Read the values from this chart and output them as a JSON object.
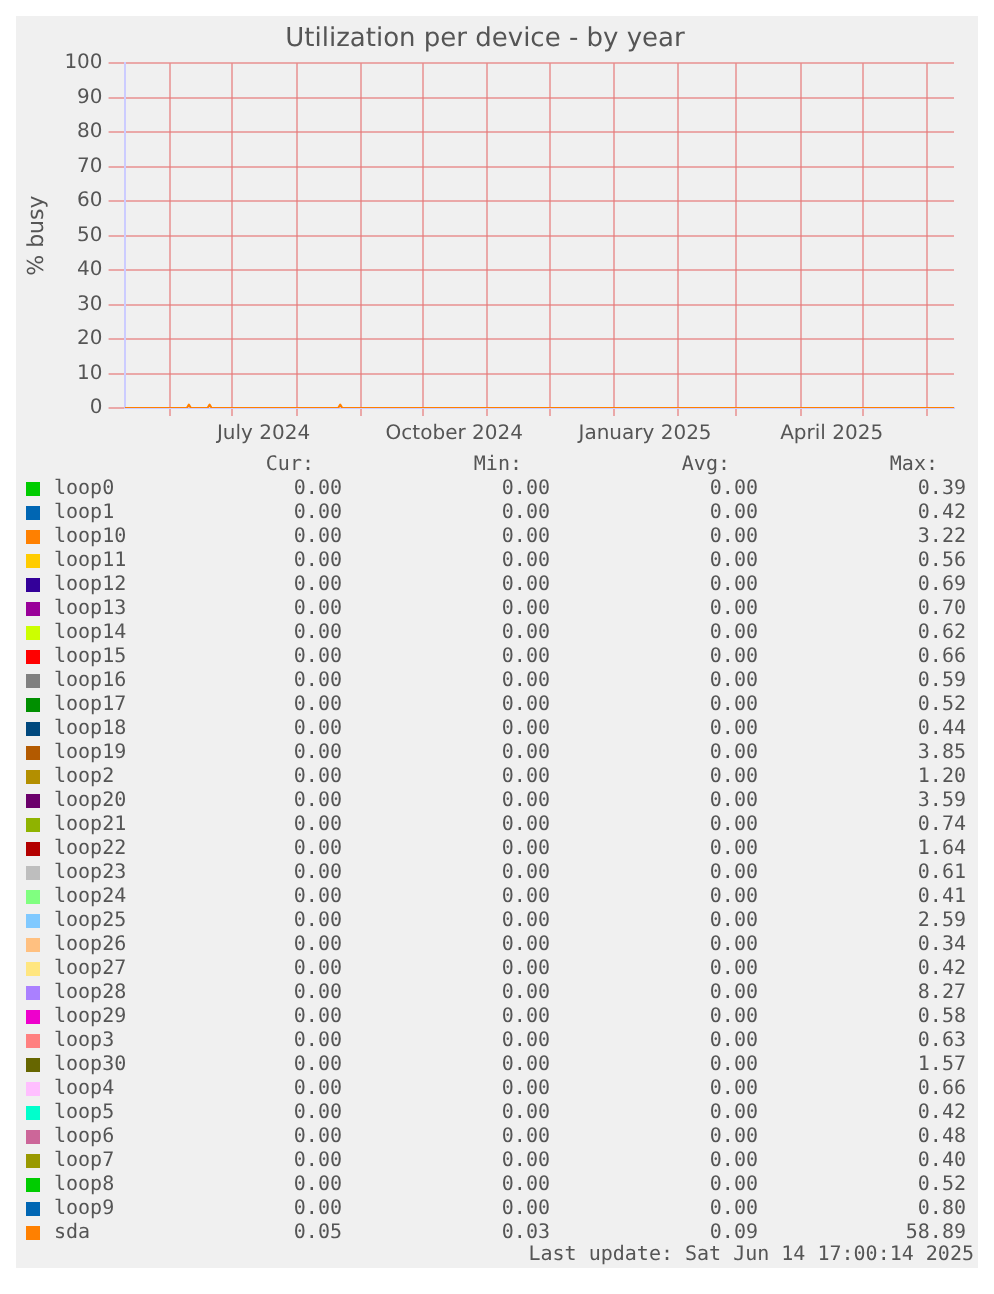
{
  "chart_data": {
    "type": "line",
    "title": "Utilization per device - by year",
    "ylabel": "% busy",
    "x": [
      "2024-05-10",
      "2024-06-09",
      "2024-06-10",
      "2024-06-11",
      "2024-06-19",
      "2024-06-20",
      "2024-06-21",
      "2024-08-21",
      "2024-08-22",
      "2024-08-23",
      "2024-10-01",
      "2025-01-01",
      "2025-04-01",
      "2025-06-14"
    ],
    "xlim": [
      "2024-05-10",
      "2025-06-14"
    ],
    "xticks": [
      {
        "value": "2024-06-01",
        "label": null
      },
      {
        "value": "2024-07-01",
        "label": null
      },
      {
        "value": "2024-07-16",
        "label": "July 2024"
      },
      {
        "value": "2024-08-01",
        "label": null
      },
      {
        "value": "2024-09-01",
        "label": null
      },
      {
        "value": "2024-10-01",
        "label": null
      },
      {
        "value": "2024-10-16",
        "label": "October 2024"
      },
      {
        "value": "2024-11-01",
        "label": null
      },
      {
        "value": "2024-12-01",
        "label": null
      },
      {
        "value": "2025-01-01",
        "label": null
      },
      {
        "value": "2025-01-16",
        "label": "January 2025"
      },
      {
        "value": "2025-02-01",
        "label": null
      },
      {
        "value": "2025-03-01",
        "label": null
      },
      {
        "value": "2025-04-01",
        "label": null
      },
      {
        "value": "2025-04-16",
        "label": "April 2025"
      },
      {
        "value": "2025-05-01",
        "label": null
      },
      {
        "value": "2025-06-01",
        "label": null
      }
    ],
    "ylim": [
      0,
      100
    ],
    "yticks": [
      0,
      10,
      20,
      30,
      40,
      50,
      60,
      70,
      80,
      90,
      100
    ],
    "grid": true,
    "legend": "bottom",
    "marker": "none",
    "line_style": "solid",
    "series": [
      {
        "name": "loop0",
        "color": "#00cc00",
        "values": [
          null,
          null,
          null,
          null,
          null,
          null,
          null,
          null,
          null,
          null,
          null,
          null,
          null,
          null
        ]
      },
      {
        "name": "loop1",
        "color": "#0066b3",
        "values": [
          null,
          null,
          null,
          null,
          null,
          null,
          null,
          null,
          null,
          null,
          null,
          null,
          null,
          null
        ]
      },
      {
        "name": "loop10",
        "color": "#ff8000",
        "values": [
          null,
          null,
          null,
          null,
          null,
          null,
          null,
          null,
          null,
          null,
          null,
          null,
          null,
          null
        ]
      },
      {
        "name": "loop11",
        "color": "#ffcc00",
        "values": [
          null,
          null,
          null,
          null,
          null,
          null,
          null,
          null,
          null,
          null,
          null,
          null,
          null,
          null
        ]
      },
      {
        "name": "loop12",
        "color": "#330099",
        "values": [
          null,
          null,
          null,
          null,
          null,
          null,
          null,
          null,
          null,
          null,
          null,
          null,
          null,
          null
        ]
      },
      {
        "name": "loop13",
        "color": "#990099",
        "values": [
          null,
          null,
          null,
          null,
          null,
          null,
          null,
          null,
          null,
          null,
          null,
          null,
          null,
          null
        ]
      },
      {
        "name": "loop14",
        "color": "#ccff00",
        "values": [
          null,
          null,
          null,
          null,
          null,
          null,
          null,
          null,
          null,
          null,
          null,
          null,
          null,
          null
        ]
      },
      {
        "name": "loop15",
        "color": "#ff0000",
        "values": [
          null,
          null,
          null,
          null,
          null,
          null,
          null,
          null,
          null,
          null,
          null,
          null,
          null,
          null
        ]
      },
      {
        "name": "loop16",
        "color": "#808080",
        "values": [
          null,
          null,
          null,
          null,
          null,
          null,
          null,
          null,
          null,
          null,
          null,
          null,
          null,
          null
        ]
      },
      {
        "name": "loop17",
        "color": "#008f00",
        "values": [
          null,
          null,
          null,
          null,
          null,
          null,
          null,
          null,
          null,
          null,
          null,
          null,
          null,
          null
        ]
      },
      {
        "name": "loop18",
        "color": "#00487d",
        "values": [
          null,
          null,
          null,
          null,
          null,
          null,
          null,
          null,
          null,
          null,
          null,
          null,
          null,
          null
        ]
      },
      {
        "name": "loop19",
        "color": "#b35a00",
        "values": [
          null,
          null,
          null,
          null,
          null,
          null,
          null,
          null,
          null,
          null,
          null,
          null,
          null,
          null
        ]
      },
      {
        "name": "loop2",
        "color": "#b38f00",
        "values": [
          null,
          null,
          null,
          null,
          null,
          null,
          null,
          null,
          null,
          null,
          null,
          null,
          null,
          null
        ]
      },
      {
        "name": "loop20",
        "color": "#6b006b",
        "values": [
          null,
          null,
          null,
          null,
          null,
          null,
          null,
          null,
          null,
          null,
          null,
          null,
          null,
          null
        ]
      },
      {
        "name": "loop21",
        "color": "#8fb300",
        "values": [
          null,
          null,
          null,
          null,
          null,
          null,
          null,
          null,
          null,
          null,
          null,
          null,
          null,
          null
        ]
      },
      {
        "name": "loop22",
        "color": "#b30000",
        "values": [
          null,
          null,
          null,
          null,
          null,
          null,
          null,
          null,
          null,
          null,
          null,
          null,
          null,
          null
        ]
      },
      {
        "name": "loop23",
        "color": "#bebebe",
        "values": [
          null,
          null,
          null,
          null,
          null,
          null,
          null,
          null,
          null,
          null,
          null,
          null,
          null,
          null
        ]
      },
      {
        "name": "loop24",
        "color": "#80ff80",
        "values": [
          null,
          null,
          null,
          null,
          null,
          null,
          null,
          null,
          null,
          null,
          null,
          null,
          null,
          null
        ]
      },
      {
        "name": "loop25",
        "color": "#80c9ff",
        "values": [
          null,
          null,
          null,
          null,
          null,
          null,
          null,
          null,
          null,
          null,
          null,
          null,
          null,
          null
        ]
      },
      {
        "name": "loop26",
        "color": "#ffc080",
        "values": [
          null,
          null,
          null,
          null,
          null,
          null,
          null,
          null,
          null,
          null,
          null,
          null,
          null,
          null
        ]
      },
      {
        "name": "loop27",
        "color": "#ffe680",
        "values": [
          null,
          null,
          null,
          null,
          null,
          null,
          null,
          null,
          null,
          null,
          null,
          null,
          null,
          null
        ]
      },
      {
        "name": "loop28",
        "color": "#aa80ff",
        "values": [
          null,
          null,
          null,
          null,
          null,
          null,
          null,
          null,
          null,
          null,
          null,
          null,
          null,
          null
        ]
      },
      {
        "name": "loop29",
        "color": "#ee00cc",
        "values": [
          null,
          null,
          null,
          null,
          null,
          null,
          null,
          null,
          null,
          null,
          null,
          null,
          null,
          null
        ]
      },
      {
        "name": "loop3",
        "color": "#ff8080",
        "values": [
          null,
          null,
          null,
          null,
          null,
          null,
          null,
          null,
          null,
          null,
          null,
          null,
          null,
          null
        ]
      },
      {
        "name": "loop30",
        "color": "#666600",
        "values": [
          null,
          null,
          null,
          null,
          null,
          null,
          null,
          null,
          null,
          null,
          null,
          null,
          null,
          null
        ]
      },
      {
        "name": "loop4",
        "color": "#ffbfff",
        "values": [
          null,
          null,
          null,
          null,
          null,
          null,
          null,
          null,
          null,
          null,
          null,
          null,
          null,
          null
        ]
      },
      {
        "name": "loop5",
        "color": "#00ffcc",
        "values": [
          null,
          null,
          null,
          null,
          null,
          null,
          null,
          null,
          null,
          null,
          null,
          null,
          null,
          null
        ]
      },
      {
        "name": "loop6",
        "color": "#cc6699",
        "values": [
          null,
          null,
          null,
          null,
          null,
          null,
          null,
          null,
          null,
          null,
          null,
          null,
          null,
          null
        ]
      },
      {
        "name": "loop7",
        "color": "#999900",
        "values": [
          null,
          null,
          null,
          null,
          null,
          null,
          null,
          null,
          null,
          null,
          null,
          null,
          null,
          null
        ]
      },
      {
        "name": "loop8",
        "color": "#00cc00",
        "values": [
          null,
          null,
          null,
          null,
          null,
          null,
          null,
          null,
          null,
          null,
          null,
          null,
          null,
          null
        ]
      },
      {
        "name": "loop9",
        "color": "#0066b3",
        "values": [
          null,
          null,
          null,
          null,
          null,
          null,
          null,
          null,
          null,
          null,
          null,
          null,
          null,
          null
        ]
      },
      {
        "name": "sda",
        "color": "#ff8000",
        "values": [
          0,
          0,
          1,
          0,
          0,
          1,
          0,
          0,
          1,
          0,
          0,
          0,
          0,
          0
        ]
      }
    ],
    "annotations": [
      "Cur:",
      "Min:",
      "Avg:",
      "Max:",
      "0.00",
      "0.00",
      "0.00",
      "0.39",
      "0.00",
      "0.00",
      "0.00",
      "0.42",
      "0.00",
      "0.00",
      "0.00",
      "3.22",
      "0.00",
      "0.00",
      "0.00",
      "0.56",
      "0.00",
      "0.00",
      "0.00",
      "0.69",
      "0.00",
      "0.00",
      "0.00",
      "0.70",
      "0.00",
      "0.00",
      "0.00",
      "0.62",
      "0.00",
      "0.00",
      "0.00",
      "0.66",
      "0.00",
      "0.00",
      "0.00",
      "0.59",
      "0.00",
      "0.00",
      "0.00",
      "0.52",
      "0.00",
      "0.00",
      "0.00",
      "0.44",
      "0.00",
      "0.00",
      "0.00",
      "3.85",
      "0.00",
      "0.00",
      "0.00",
      "1.20",
      "0.00",
      "0.00",
      "0.00",
      "3.59",
      "0.00",
      "0.00",
      "0.00",
      "0.74",
      "0.00",
      "0.00",
      "0.00",
      "1.64",
      "0.00",
      "0.00",
      "0.00",
      "0.61",
      "0.00",
      "0.00",
      "0.00",
      "0.41",
      "0.00",
      "0.00",
      "0.00",
      "2.59",
      "0.00",
      "0.00",
      "0.00",
      "0.34",
      "0.00",
      "0.00",
      "0.00",
      "0.42",
      "0.00",
      "0.00",
      "0.00",
      "8.27",
      "0.00",
      "0.00",
      "0.00",
      "0.58",
      "0.00",
      "0.00",
      "0.00",
      "0.63",
      "0.00",
      "0.00",
      "0.00",
      "1.57",
      "0.00",
      "0.00",
      "0.00",
      "0.66",
      "0.00",
      "0.00",
      "0.00",
      "0.42",
      "0.00",
      "0.00",
      "0.00",
      "0.48",
      "0.00",
      "0.00",
      "0.00",
      "0.40",
      "0.00",
      "0.00",
      "0.00",
      "0.52",
      "0.00",
      "0.00",
      "0.00",
      "0.80",
      "0.05",
      "0.03",
      "0.09",
      "58.89",
      "Last update: Sat Jun 14 17:00:14 2025"
    ]
  }
}
